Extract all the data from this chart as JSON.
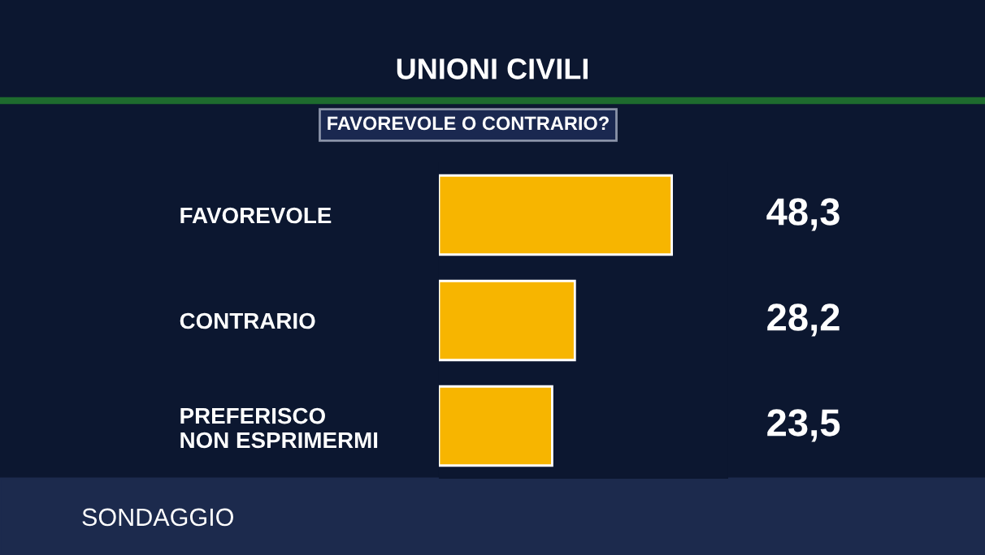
{
  "chart_data": {
    "type": "bar",
    "orientation": "horizontal",
    "title": "UNIONI CIVILI",
    "subtitle": "FAVOREVOLE O CONTRARIO?",
    "categories": [
      "FAVOREVOLE",
      "CONTRARIO",
      "PREFERISCO\nNON ESPRIMERMI"
    ],
    "values": [
      48.3,
      28.2,
      23.5
    ],
    "color": "#f7b500",
    "value_labels": [
      "48,3",
      "28,2",
      "23,5"
    ],
    "xlim": [
      0,
      60
    ],
    "tick_labels": "y",
    "grid": false,
    "legend": false,
    "annotations": [
      "SONDAGGIO"
    ]
  }
}
